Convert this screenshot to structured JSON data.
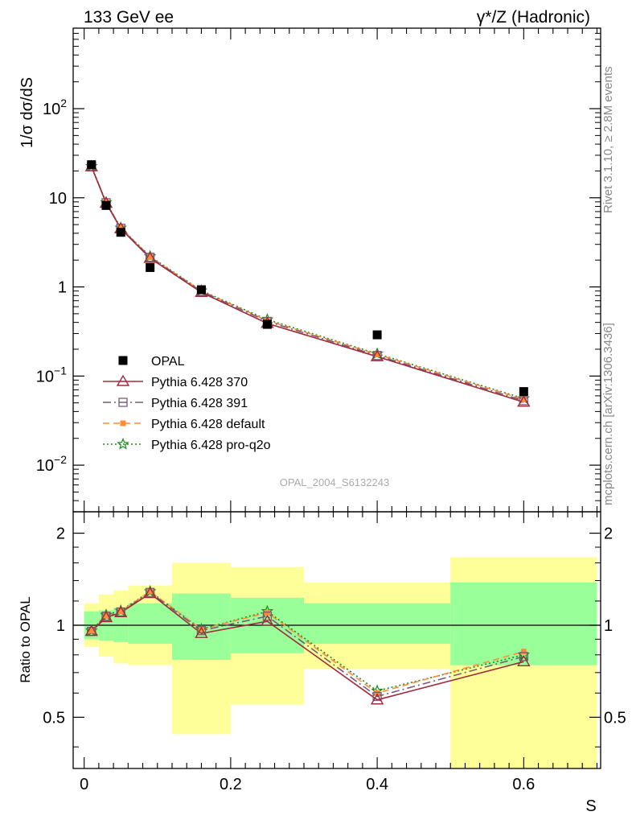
{
  "header": {
    "left": "133 GeV ee",
    "right": "γ*/Z (Hadronic)"
  },
  "side_labels": {
    "rivet": "Rivet 3.1.10, ≥ 2.8M events",
    "mcplots": "mcplots.cern.ch [arXiv:1306.3436]"
  },
  "analysis_label": "OPAL_2004_S6132243",
  "colors": {
    "data": "#000000",
    "p370": "#a02a3c",
    "p391": "#7a5a78",
    "pdefault": "#ff8c3a",
    "pq2o": "#1a8a1a",
    "band_inner": "#99ff99",
    "band_outer": "#ffff99"
  },
  "chart_data": [
    {
      "type": "scatter",
      "panel": "main",
      "ylabel": "1/σ dσ/dS",
      "yscale": "log",
      "ylim": [
        0.003,
        800
      ],
      "xlim": [
        -0.015,
        0.705
      ],
      "y_tick_labels": [
        "10^-2",
        "10^-1",
        "1",
        "10",
        "10^2"
      ],
      "legend_position": "middle-left",
      "series": [
        {
          "name": "OPAL",
          "marker": "filled-square",
          "x": [
            0.01,
            0.03,
            0.05,
            0.09,
            0.16,
            0.25,
            0.4,
            0.6
          ],
          "y": [
            23.5,
            8.2,
            4.1,
            1.65,
            0.93,
            0.38,
            0.29,
            0.067
          ]
        },
        {
          "name": "Pythia 6.428 370",
          "marker": "open-triangle",
          "x": [
            0.01,
            0.03,
            0.05,
            0.09,
            0.16,
            0.25,
            0.4,
            0.6
          ],
          "y": [
            22.3,
            8.7,
            4.5,
            2.1,
            0.87,
            0.39,
            0.165,
            0.051
          ]
        },
        {
          "name": "Pythia 6.428 391",
          "marker": "open-square",
          "x": [
            0.01,
            0.03,
            0.05,
            0.09,
            0.16,
            0.25,
            0.4,
            0.6
          ],
          "y": [
            22.4,
            8.8,
            4.55,
            2.15,
            0.89,
            0.41,
            0.17,
            0.053
          ]
        },
        {
          "name": "Pythia 6.428 default",
          "marker": "filled-square-small",
          "x": [
            0.01,
            0.03,
            0.05,
            0.09,
            0.16,
            0.25,
            0.4,
            0.6
          ],
          "y": [
            22.5,
            8.85,
            4.6,
            2.17,
            0.9,
            0.42,
            0.175,
            0.055
          ]
        },
        {
          "name": "Pythia 6.428 pro-q2o",
          "marker": "star",
          "x": [
            0.01,
            0.03,
            0.05,
            0.09,
            0.16,
            0.25,
            0.4,
            0.6
          ],
          "y": [
            22.6,
            8.9,
            4.6,
            2.2,
            0.91,
            0.43,
            0.178,
            0.056
          ]
        }
      ]
    },
    {
      "type": "line",
      "panel": "ratio",
      "ylabel": "Ratio to OPAL",
      "xlabel": "S",
      "yscale": "log",
      "ylim": [
        0.34,
        2.35
      ],
      "xlim": [
        -0.015,
        0.705
      ],
      "y_tick_labels": [
        "0.5",
        "1",
        "2"
      ],
      "x_tick_labels": [
        "0",
        "0.2",
        "0.4",
        "0.6"
      ],
      "reference_line": 1,
      "bands": {
        "edges": [
          0,
          0.02,
          0.04,
          0.06,
          0.12,
          0.2,
          0.3,
          0.5,
          0.7
        ],
        "inner_low": [
          0.9,
          0.89,
          0.88,
          0.87,
          0.77,
          0.81,
          0.87,
          0.74
        ],
        "inner_high": [
          1.11,
          1.12,
          1.14,
          1.18,
          1.27,
          1.23,
          1.18,
          1.38
        ],
        "outer_low": [
          0.85,
          0.79,
          0.75,
          0.74,
          0.44,
          0.55,
          0.72,
          0.34
        ],
        "outer_high": [
          1.18,
          1.26,
          1.3,
          1.35,
          1.6,
          1.55,
          1.38,
          1.67
        ]
      },
      "series": [
        {
          "name": "Pythia 6.428 370",
          "x": [
            0.01,
            0.03,
            0.05,
            0.09,
            0.16,
            0.25,
            0.4,
            0.6
          ],
          "y": [
            0.955,
            1.06,
            1.1,
            1.27,
            0.94,
            1.03,
            0.57,
            0.76
          ]
        },
        {
          "name": "Pythia 6.428 391",
          "x": [
            0.01,
            0.03,
            0.05,
            0.09,
            0.16,
            0.25,
            0.4,
            0.6
          ],
          "y": [
            0.955,
            1.07,
            1.105,
            1.28,
            0.96,
            1.07,
            0.585,
            0.79
          ]
        },
        {
          "name": "Pythia 6.428 default",
          "x": [
            0.01,
            0.03,
            0.05,
            0.09,
            0.16,
            0.25,
            0.4,
            0.6
          ],
          "y": [
            0.96,
            1.075,
            1.11,
            1.29,
            0.97,
            1.1,
            0.6,
            0.82
          ]
        },
        {
          "name": "Pythia 6.428 pro-q2o",
          "x": [
            0.01,
            0.03,
            0.05,
            0.09,
            0.16,
            0.25,
            0.4,
            0.6
          ],
          "y": [
            0.96,
            1.08,
            1.115,
            1.29,
            0.97,
            1.11,
            0.61,
            0.8
          ]
        }
      ]
    }
  ]
}
